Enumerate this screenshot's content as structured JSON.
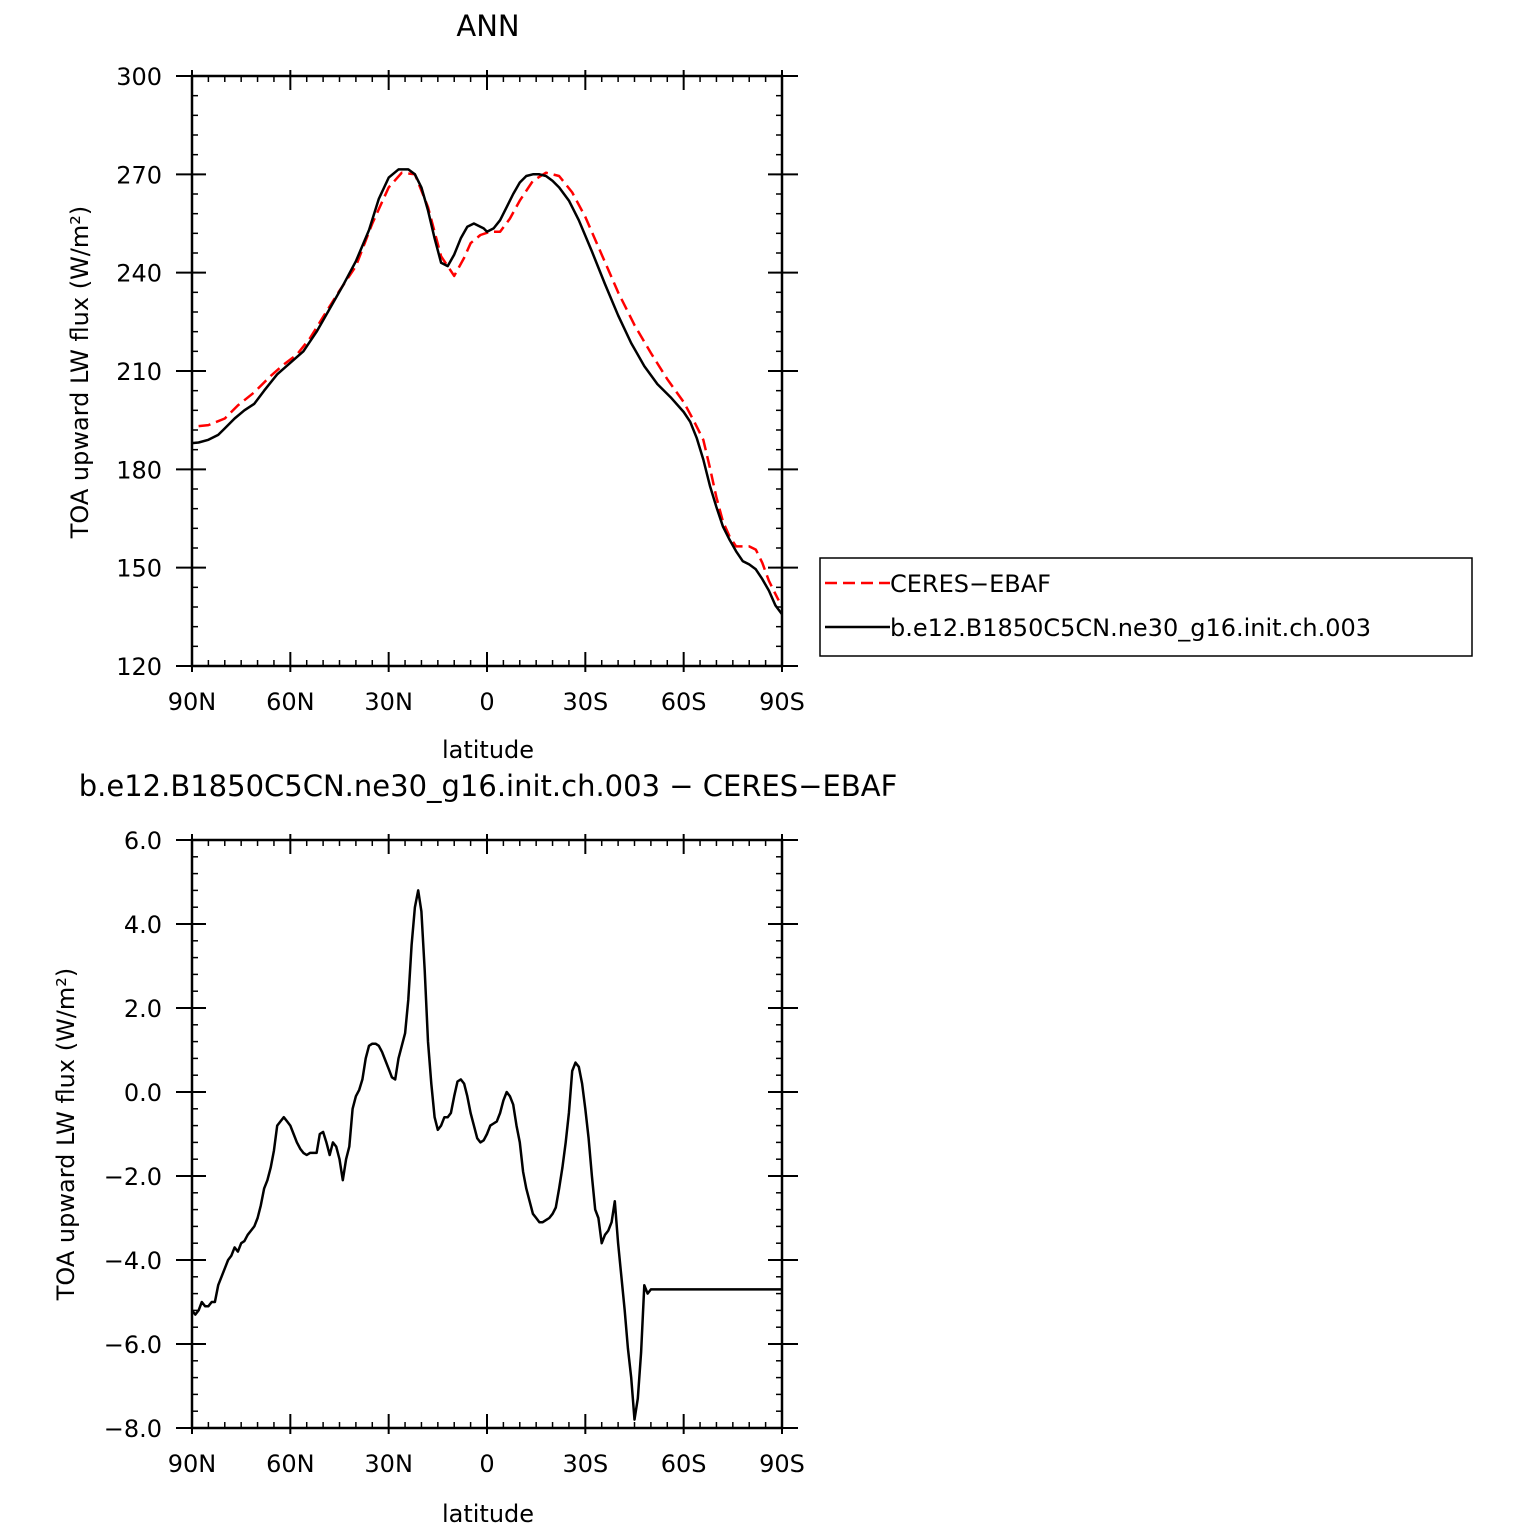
{
  "chart_data": [
    {
      "type": "line",
      "title": "ANN",
      "xlabel": "latitude",
      "ylabel": "TOA upward LW flux (W/m²)",
      "xlim": [
        90,
        -90
      ],
      "ylim": [
        120,
        300
      ],
      "x_tick_values": [
        90,
        60,
        30,
        0,
        -30,
        -60,
        -90
      ],
      "x_tick_labels": [
        "90N",
        "60N",
        "30N",
        "0",
        "30S",
        "60S",
        "90S"
      ],
      "y_tick_values": [
        120,
        150,
        180,
        210,
        240,
        270,
        300
      ],
      "y_tick_labels": [
        "120",
        "150",
        "180",
        "210",
        "240",
        "270",
        "300"
      ],
      "legend": {
        "placement": "outside-right"
      },
      "series": [
        {
          "name": "CERES−EBAF",
          "color": "#ff0000",
          "dash": "dashed",
          "x": [
            88,
            85,
            80,
            76,
            71,
            66,
            62,
            58,
            54,
            50,
            45,
            40,
            35,
            30,
            26,
            22,
            18,
            14,
            10,
            7,
            5,
            2,
            -1,
            -4,
            -7,
            -10,
            -14,
            -18,
            -22,
            -26,
            -30,
            -35,
            -40,
            -45,
            -50,
            -55,
            -60,
            -63,
            -66,
            -68,
            -70,
            -72,
            -74,
            -76,
            -78,
            -80,
            -82,
            -84,
            -86,
            -88,
            -89
          ],
          "y": [
            193.2,
            193.5,
            195.5,
            199.5,
            203.5,
            208.5,
            212.0,
            215.0,
            220.0,
            226.5,
            234.5,
            242.0,
            255.0,
            266.0,
            270.5,
            270.0,
            260.0,
            245.0,
            239.0,
            244.5,
            249.0,
            251.5,
            252.5,
            252.5,
            256.5,
            262.0,
            268.0,
            270.5,
            269.5,
            264.5,
            257.0,
            245.5,
            234.0,
            224.0,
            215.5,
            207.5,
            200.5,
            195.0,
            189.0,
            180.5,
            171.5,
            164.0,
            159.5,
            156.5,
            156.5,
            156.5,
            155.5,
            151.5,
            146.0,
            142.0,
            140.0
          ]
        },
        {
          "name": "b.e12.B1850C5CN.ne30_g16.init.ch.003",
          "color": "#000000",
          "dash": "solid",
          "x": [
            90,
            88,
            85,
            82,
            80,
            77,
            74,
            71,
            68,
            64,
            60,
            56,
            52,
            48,
            44,
            40,
            36,
            33,
            30,
            27,
            24,
            22,
            20,
            18,
            16,
            14,
            12,
            10,
            8,
            6,
            4,
            2,
            1,
            0,
            -2,
            -4,
            -6,
            -8,
            -10,
            -12,
            -14,
            -16,
            -18,
            -20,
            -22,
            -25,
            -28,
            -32,
            -36,
            -40,
            -44,
            -48,
            -52,
            -56,
            -60,
            -62,
            -64,
            -66,
            -68,
            -70,
            -72,
            -74,
            -76,
            -78,
            -80,
            -82,
            -84,
            -86,
            -88,
            -90
          ],
          "y": [
            188.0,
            188.2,
            189.0,
            190.5,
            192.5,
            195.5,
            198.0,
            200.0,
            204.0,
            209.0,
            212.5,
            216.0,
            222.0,
            229.0,
            236.0,
            243.5,
            253.0,
            262.5,
            269.0,
            271.5,
            271.5,
            270.0,
            266.0,
            259.0,
            250.5,
            243.0,
            242.0,
            245.5,
            250.5,
            254.0,
            255.0,
            254.0,
            253.5,
            252.5,
            253.5,
            256.0,
            260.0,
            264.0,
            267.5,
            269.5,
            270.0,
            270.0,
            269.5,
            268.0,
            266.0,
            262.0,
            256.0,
            246.5,
            236.5,
            227.0,
            218.5,
            211.5,
            206.0,
            202.0,
            197.5,
            194.5,
            189.5,
            183.0,
            175.0,
            168.5,
            162.5,
            158.5,
            155.0,
            152.0,
            151.0,
            149.5,
            146.5,
            143.0,
            138.5,
            135.8
          ]
        }
      ]
    },
    {
      "type": "line",
      "title": "b.e12.B1850C5CN.ne30_g16.init.ch.003 − CERES−EBAF",
      "xlabel": "latitude",
      "ylabel": "TOA upward LW flux (W/m²)",
      "xlim": [
        90,
        -90
      ],
      "ylim": [
        -8.0,
        6.0
      ],
      "x_tick_values": [
        90,
        60,
        30,
        0,
        -30,
        -60,
        -90
      ],
      "x_tick_labels": [
        "90N",
        "60N",
        "30N",
        "0",
        "30S",
        "60S",
        "90S"
      ],
      "y_tick_values": [
        -8,
        -6,
        -4,
        -2,
        0,
        2,
        4,
        6
      ],
      "y_tick_labels": [
        "−8.0",
        "−6.0",
        "−4.0",
        "−2.0",
        "0.0",
        "2.0",
        "4.0",
        "6.0"
      ],
      "series": [
        {
          "color": "#000000",
          "x": [
            90,
            89,
            88,
            87,
            86,
            85,
            84,
            83,
            82,
            81,
            80,
            79,
            78,
            77,
            76,
            75,
            74,
            73,
            72,
            71,
            70,
            69,
            68,
            67,
            66,
            65,
            64,
            63,
            62,
            61,
            60,
            59,
            58,
            57,
            56,
            55,
            54,
            53,
            52,
            51,
            50,
            49,
            48,
            47,
            46,
            45,
            44,
            43,
            42,
            41,
            40,
            39,
            38,
            37,
            36,
            35,
            34,
            33,
            32,
            31,
            30,
            29,
            28,
            27,
            26,
            25,
            24,
            23,
            22,
            21,
            20,
            19,
            18,
            17,
            16,
            15,
            14,
            13,
            12,
            11,
            10,
            9,
            8,
            7,
            6,
            5,
            4,
            3,
            2,
            1,
            0,
            -1,
            -2,
            -3,
            -4,
            -5,
            -6,
            -7,
            -8,
            -9,
            -10,
            -11,
            -12,
            -13,
            -14,
            -15,
            -16,
            -17,
            -18,
            -19,
            -20,
            -21,
            -22,
            -23,
            -24,
            -25,
            -26,
            -27,
            -28,
            -29,
            -30,
            -31,
            -32,
            -33,
            -34,
            -35,
            -36,
            -37,
            -38,
            -39,
            -40,
            -41,
            -42,
            -43,
            -44,
            -45,
            -46,
            -47,
            -48,
            -49,
            -50,
            -51,
            -52,
            -53,
            -54,
            -55,
            -56,
            -57,
            -58,
            -59,
            -60,
            -61,
            -62,
            -63,
            -64,
            -65,
            -66,
            -67,
            -68,
            -69,
            -70,
            -71,
            -72,
            -73,
            -74,
            -75,
            -76,
            -77,
            -78,
            -79,
            -80,
            -81,
            -82,
            -83,
            -84,
            -85,
            -86,
            -87,
            -88,
            -89,
            -90
          ],
          "y": [
            -5.2,
            -5.3,
            -5.2,
            -5.0,
            -5.1,
            -5.1,
            -5.0,
            -5.0,
            -4.6,
            -4.4,
            -4.2,
            -4.0,
            -3.9,
            -3.7,
            -3.8,
            -3.6,
            -3.55,
            -3.4,
            -3.3,
            -3.2,
            -3.0,
            -2.7,
            -2.3,
            -2.1,
            -1.8,
            -1.4,
            -0.8,
            -0.7,
            -0.6,
            -0.7,
            -0.8,
            -1.0,
            -1.2,
            -1.35,
            -1.45,
            -1.5,
            -1.45,
            -1.45,
            -1.45,
            -1.0,
            -0.95,
            -1.2,
            -1.5,
            -1.2,
            -1.3,
            -1.6,
            -2.1,
            -1.6,
            -1.3,
            -0.4,
            -0.1,
            0.05,
            0.3,
            0.8,
            1.1,
            1.15,
            1.15,
            1.1,
            0.95,
            0.75,
            0.55,
            0.35,
            0.3,
            0.8,
            1.1,
            1.4,
            2.2,
            3.5,
            4.4,
            4.8,
            4.3,
            2.9,
            1.2,
            0.2,
            -0.6,
            -0.9,
            -0.8,
            -0.6,
            -0.6,
            -0.5,
            -0.1,
            0.25,
            0.3,
            0.2,
            -0.1,
            -0.5,
            -0.8,
            -1.1,
            -1.2,
            -1.15,
            -1.0,
            -0.8,
            -0.75,
            -0.7,
            -0.5,
            -0.2,
            0.0,
            -0.1,
            -0.3,
            -0.8,
            -1.2,
            -1.9,
            -2.3,
            -2.6,
            -2.9,
            -3.0,
            -3.1,
            -3.1,
            -3.05,
            -3.0,
            -2.9,
            -2.75,
            -2.3,
            -1.8,
            -1.2,
            -0.5,
            0.5,
            0.7,
            0.6,
            0.2,
            -0.4,
            -1.1,
            -2.0,
            -2.8,
            -3.0,
            -3.6,
            -3.4,
            -3.3,
            -3.1,
            -2.6,
            -3.6,
            -4.4,
            -5.2,
            -6.1,
            -6.8,
            -7.8,
            -7.3,
            -6.2,
            -4.6,
            -4.8,
            -4.7,
            -4.7,
            -4.7,
            -4.7,
            -4.7,
            -4.7,
            -4.7,
            -4.7,
            -4.7,
            -4.7,
            -4.7,
            -4.7,
            -4.7,
            -4.7,
            -4.7,
            -4.7,
            -4.7,
            -4.7,
            -4.7,
            -4.7,
            -4.7,
            -4.7,
            -4.7,
            -4.7,
            -4.7,
            -4.7,
            -4.7,
            -4.7,
            -4.7,
            -4.7,
            -4.7,
            -4.7,
            -4.7,
            -4.7,
            -4.7,
            -4.7,
            -4.7,
            -4.7,
            -4.7,
            -4.7,
            -4.7
          ]
        }
      ]
    }
  ]
}
